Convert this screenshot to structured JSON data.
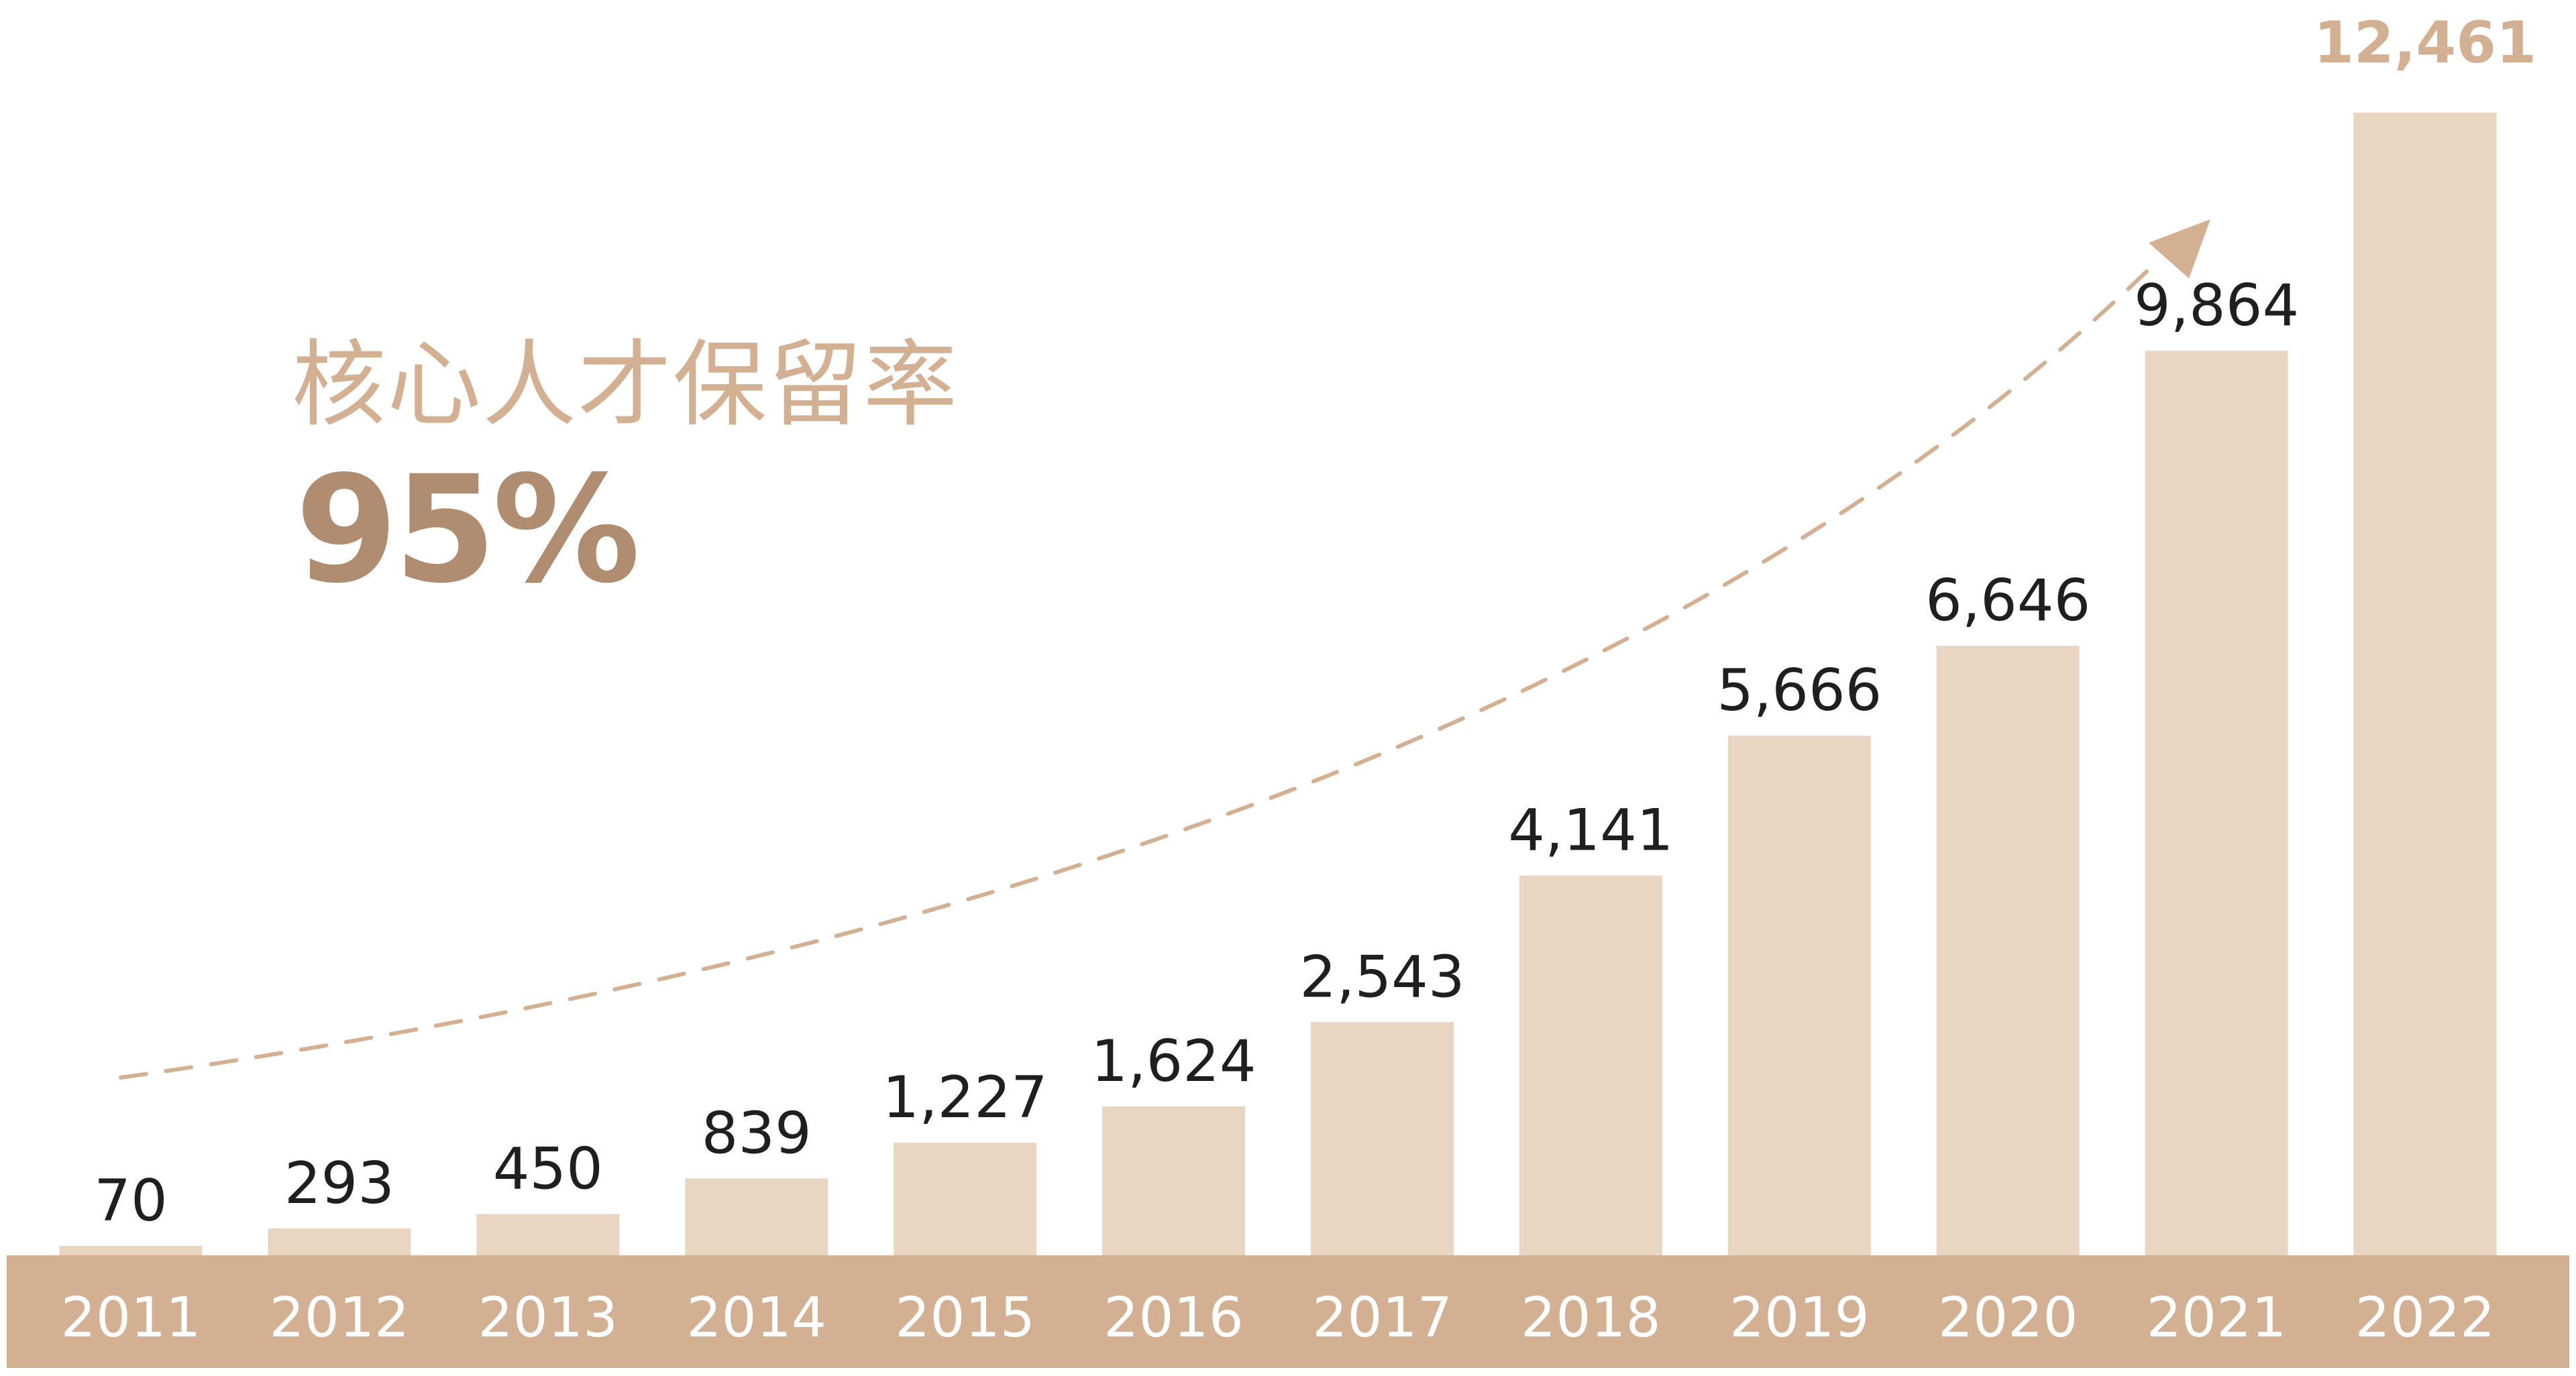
{
  "kpi": {
    "label": "核心人才保留率",
    "value": "95%"
  },
  "colors": {
    "bar": "#e8d6c3",
    "axis_band": "#d3b092",
    "highlight_label": "#d3b092",
    "kpi_value": "#b08d70",
    "value_label": "#1f1f1f",
    "trend_arrow": "#d3b092"
  },
  "chart_data": {
    "type": "bar",
    "title": "",
    "xlabel": "",
    "ylabel": "",
    "categories": [
      "2011",
      "2012",
      "2013",
      "2014",
      "2015",
      "2016",
      "2017",
      "2018",
      "2019",
      "2020",
      "2021",
      "2022"
    ],
    "values": [
      70,
      293,
      450,
      839,
      1227,
      1624,
      2543,
      4141,
      5666,
      6646,
      9864,
      12461
    ],
    "value_labels": [
      "70",
      "293",
      "450",
      "839",
      "1,227",
      "1,624",
      "2,543",
      "4,141",
      "5,666",
      "6,646",
      "9,864",
      "12,461"
    ],
    "highlighted_category": "2022",
    "ylim": [
      0,
      12461
    ],
    "grid": false,
    "legend": "none",
    "annotation": "dashed upward trend arrow"
  }
}
